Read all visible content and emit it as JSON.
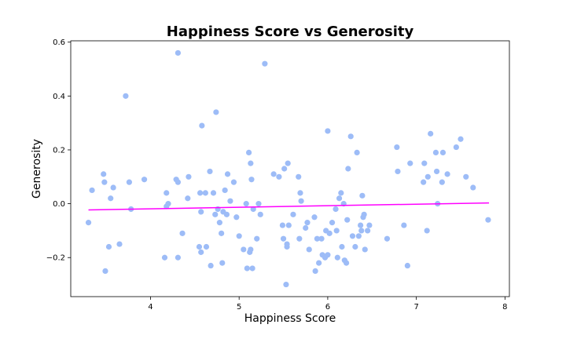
{
  "chart_data": {
    "type": "scatter",
    "title": "Happiness Score vs Generosity",
    "xlabel": "Happiness Score",
    "ylabel": "Generosity",
    "xlim": [
      3.1,
      8.05
    ],
    "ylim": [
      -0.345,
      0.605
    ],
    "xticks": [
      4,
      5,
      6,
      7,
      8
    ],
    "yticks": [
      -0.2,
      0.0,
      0.2,
      0.4,
      0.6
    ],
    "grid": false,
    "legend": "none",
    "colors": {
      "points": "#9dbcf7",
      "trendline": "#ff00ff"
    },
    "trendline": {
      "x": [
        3.3,
        7.82
      ],
      "y": [
        -0.023,
        0.003
      ]
    },
    "points": [
      {
        "x": 3.3,
        "y": -0.07
      },
      {
        "x": 3.34,
        "y": 0.05
      },
      {
        "x": 3.47,
        "y": 0.11
      },
      {
        "x": 3.48,
        "y": 0.08
      },
      {
        "x": 3.49,
        "y": -0.25
      },
      {
        "x": 3.53,
        "y": -0.16
      },
      {
        "x": 3.55,
        "y": 0.02
      },
      {
        "x": 3.58,
        "y": 0.06
      },
      {
        "x": 3.65,
        "y": -0.15
      },
      {
        "x": 3.72,
        "y": 0.4
      },
      {
        "x": 3.76,
        "y": 0.08
      },
      {
        "x": 3.78,
        "y": -0.02
      },
      {
        "x": 3.93,
        "y": 0.09
      },
      {
        "x": 4.16,
        "y": -0.2
      },
      {
        "x": 4.18,
        "y": 0.04
      },
      {
        "x": 4.18,
        "y": -0.01
      },
      {
        "x": 4.2,
        "y": 0.0
      },
      {
        "x": 4.29,
        "y": 0.09
      },
      {
        "x": 4.31,
        "y": 0.08
      },
      {
        "x": 4.31,
        "y": 0.56
      },
      {
        "x": 4.31,
        "y": -0.2
      },
      {
        "x": 4.36,
        "y": -0.11
      },
      {
        "x": 4.42,
        "y": 0.02
      },
      {
        "x": 4.43,
        "y": 0.1
      },
      {
        "x": 4.55,
        "y": -0.16
      },
      {
        "x": 4.56,
        "y": 0.04
      },
      {
        "x": 4.57,
        "y": -0.03
      },
      {
        "x": 4.57,
        "y": -0.18
      },
      {
        "x": 4.58,
        "y": 0.29
      },
      {
        "x": 4.62,
        "y": 0.04
      },
      {
        "x": 4.63,
        "y": -0.16
      },
      {
        "x": 4.67,
        "y": 0.12
      },
      {
        "x": 4.68,
        "y": -0.23
      },
      {
        "x": 4.71,
        "y": 0.04
      },
      {
        "x": 4.73,
        "y": -0.04
      },
      {
        "x": 4.74,
        "y": 0.34
      },
      {
        "x": 4.76,
        "y": -0.02
      },
      {
        "x": 4.78,
        "y": -0.07
      },
      {
        "x": 4.8,
        "y": -0.11
      },
      {
        "x": 4.81,
        "y": -0.22
      },
      {
        "x": 4.82,
        "y": -0.03
      },
      {
        "x": 4.84,
        "y": 0.05
      },
      {
        "x": 4.86,
        "y": -0.04
      },
      {
        "x": 4.87,
        "y": 0.11
      },
      {
        "x": 4.9,
        "y": 0.01
      },
      {
        "x": 4.94,
        "y": 0.08
      },
      {
        "x": 4.97,
        "y": -0.05
      },
      {
        "x": 5.0,
        "y": -0.12
      },
      {
        "x": 5.05,
        "y": -0.17
      },
      {
        "x": 5.08,
        "y": 0.0
      },
      {
        "x": 5.09,
        "y": -0.24
      },
      {
        "x": 5.11,
        "y": 0.19
      },
      {
        "x": 5.12,
        "y": -0.18
      },
      {
        "x": 5.13,
        "y": -0.17
      },
      {
        "x": 5.13,
        "y": 0.15
      },
      {
        "x": 5.14,
        "y": 0.09
      },
      {
        "x": 5.15,
        "y": -0.24
      },
      {
        "x": 5.16,
        "y": -0.02
      },
      {
        "x": 5.2,
        "y": -0.13
      },
      {
        "x": 5.22,
        "y": 0.0
      },
      {
        "x": 5.24,
        "y": -0.04
      },
      {
        "x": 5.29,
        "y": 0.52
      },
      {
        "x": 5.39,
        "y": 0.11
      },
      {
        "x": 5.45,
        "y": 0.1
      },
      {
        "x": 5.49,
        "y": -0.08
      },
      {
        "x": 5.5,
        "y": -0.13
      },
      {
        "x": 5.51,
        "y": 0.13
      },
      {
        "x": 5.53,
        "y": -0.3
      },
      {
        "x": 5.54,
        "y": -0.16
      },
      {
        "x": 5.54,
        "y": -0.15
      },
      {
        "x": 5.55,
        "y": 0.15
      },
      {
        "x": 5.56,
        "y": -0.08
      },
      {
        "x": 5.61,
        "y": -0.04
      },
      {
        "x": 5.67,
        "y": 0.1
      },
      {
        "x": 5.68,
        "y": -0.13
      },
      {
        "x": 5.69,
        "y": 0.04
      },
      {
        "x": 5.7,
        "y": 0.01
      },
      {
        "x": 5.75,
        "y": -0.09
      },
      {
        "x": 5.77,
        "y": -0.07
      },
      {
        "x": 5.79,
        "y": -0.17
      },
      {
        "x": 5.85,
        "y": -0.05
      },
      {
        "x": 5.86,
        "y": -0.25
      },
      {
        "x": 5.88,
        "y": -0.13
      },
      {
        "x": 5.9,
        "y": -0.22
      },
      {
        "x": 5.93,
        "y": -0.13
      },
      {
        "x": 5.94,
        "y": -0.19
      },
      {
        "x": 5.97,
        "y": -0.2
      },
      {
        "x": 5.98,
        "y": -0.1
      },
      {
        "x": 6.0,
        "y": 0.27
      },
      {
        "x": 6.0,
        "y": -0.19
      },
      {
        "x": 6.02,
        "y": -0.11
      },
      {
        "x": 6.05,
        "y": -0.07
      },
      {
        "x": 6.09,
        "y": -0.02
      },
      {
        "x": 6.1,
        "y": -0.1
      },
      {
        "x": 6.11,
        "y": -0.2
      },
      {
        "x": 6.13,
        "y": 0.02
      },
      {
        "x": 6.15,
        "y": 0.04
      },
      {
        "x": 6.16,
        "y": -0.16
      },
      {
        "x": 6.18,
        "y": 0.0
      },
      {
        "x": 6.19,
        "y": -0.21
      },
      {
        "x": 6.21,
        "y": -0.22
      },
      {
        "x": 6.22,
        "y": -0.06
      },
      {
        "x": 6.23,
        "y": 0.13
      },
      {
        "x": 6.26,
        "y": 0.25
      },
      {
        "x": 6.28,
        "y": -0.12
      },
      {
        "x": 6.31,
        "y": -0.16
      },
      {
        "x": 6.33,
        "y": 0.19
      },
      {
        "x": 6.35,
        "y": -0.12
      },
      {
        "x": 6.37,
        "y": -0.08
      },
      {
        "x": 6.38,
        "y": -0.1
      },
      {
        "x": 6.39,
        "y": 0.03
      },
      {
        "x": 6.4,
        "y": -0.05
      },
      {
        "x": 6.41,
        "y": -0.04
      },
      {
        "x": 6.42,
        "y": -0.17
      },
      {
        "x": 6.45,
        "y": -0.1
      },
      {
        "x": 6.47,
        "y": -0.08
      },
      {
        "x": 6.67,
        "y": -0.13
      },
      {
        "x": 6.78,
        "y": 0.21
      },
      {
        "x": 6.79,
        "y": 0.12
      },
      {
        "x": 6.86,
        "y": -0.08
      },
      {
        "x": 6.9,
        "y": -0.23
      },
      {
        "x": 6.93,
        "y": 0.15
      },
      {
        "x": 7.08,
        "y": 0.08
      },
      {
        "x": 7.09,
        "y": 0.15
      },
      {
        "x": 7.12,
        "y": -0.1
      },
      {
        "x": 7.13,
        "y": 0.1
      },
      {
        "x": 7.16,
        "y": 0.26
      },
      {
        "x": 7.22,
        "y": 0.19
      },
      {
        "x": 7.23,
        "y": 0.12
      },
      {
        "x": 7.24,
        "y": 0.0
      },
      {
        "x": 7.29,
        "y": 0.08
      },
      {
        "x": 7.3,
        "y": 0.19
      },
      {
        "x": 7.35,
        "y": 0.11
      },
      {
        "x": 7.45,
        "y": 0.21
      },
      {
        "x": 7.5,
        "y": 0.24
      },
      {
        "x": 7.56,
        "y": 0.1
      },
      {
        "x": 7.64,
        "y": 0.06
      },
      {
        "x": 7.81,
        "y": -0.06
      }
    ]
  }
}
